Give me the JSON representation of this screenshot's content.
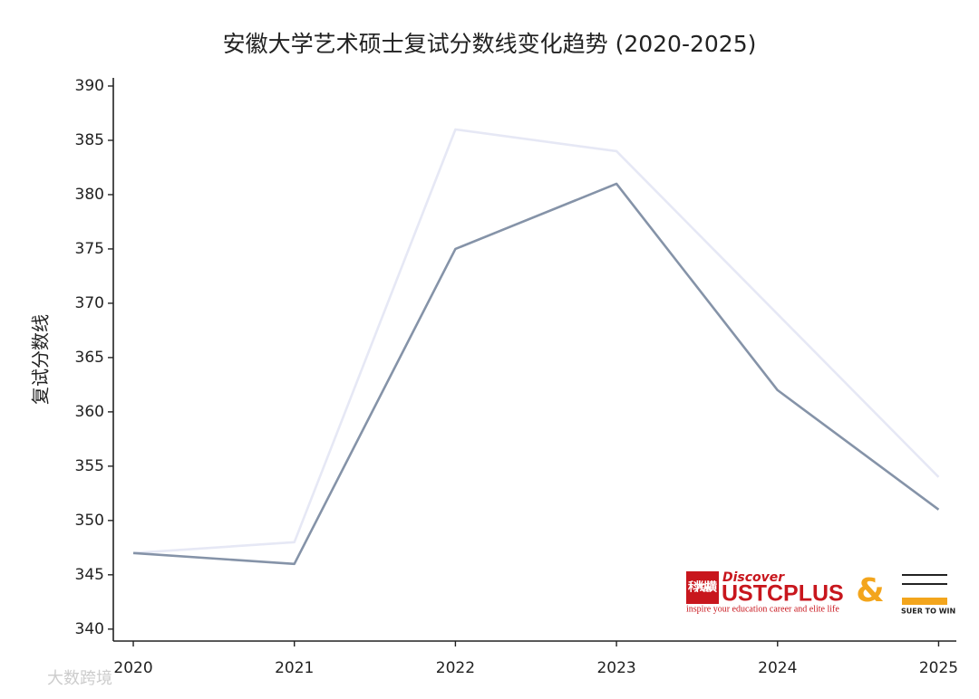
{
  "chart_data": {
    "type": "line",
    "title": "安徽大学艺术硕士复试分数线变化趋势 (2020-2025)",
    "y_label": "复试分数线",
    "x": [
      2020,
      2021,
      2022,
      2023,
      2024,
      2025
    ],
    "series": [
      {
        "color": "#e6e8f5",
        "values": [
          347,
          348,
          386,
          384,
          369,
          354
        ]
      },
      {
        "color": "#8593a8",
        "values": [
          347,
          346,
          375,
          381,
          362,
          351
        ]
      }
    ],
    "xlim": [
      2019.876,
      2025.11
    ],
    "xticks": [
      2020,
      2021,
      2022,
      2023,
      2024,
      2025
    ],
    "ylim": [
      338.9,
      390.75
    ],
    "yticks": [
      340,
      345,
      350,
      355,
      360,
      365,
      370,
      375,
      380,
      385,
      390
    ],
    "grid": false
  },
  "branding": {
    "cn_logo": "科大纵横",
    "discover": "Discover",
    "brand": "USTCPLUS",
    "tagline": "inspire your education career and elite life",
    "amp": "&",
    "partner": "SUER TO WIN",
    "watermark": "大数跨境"
  }
}
